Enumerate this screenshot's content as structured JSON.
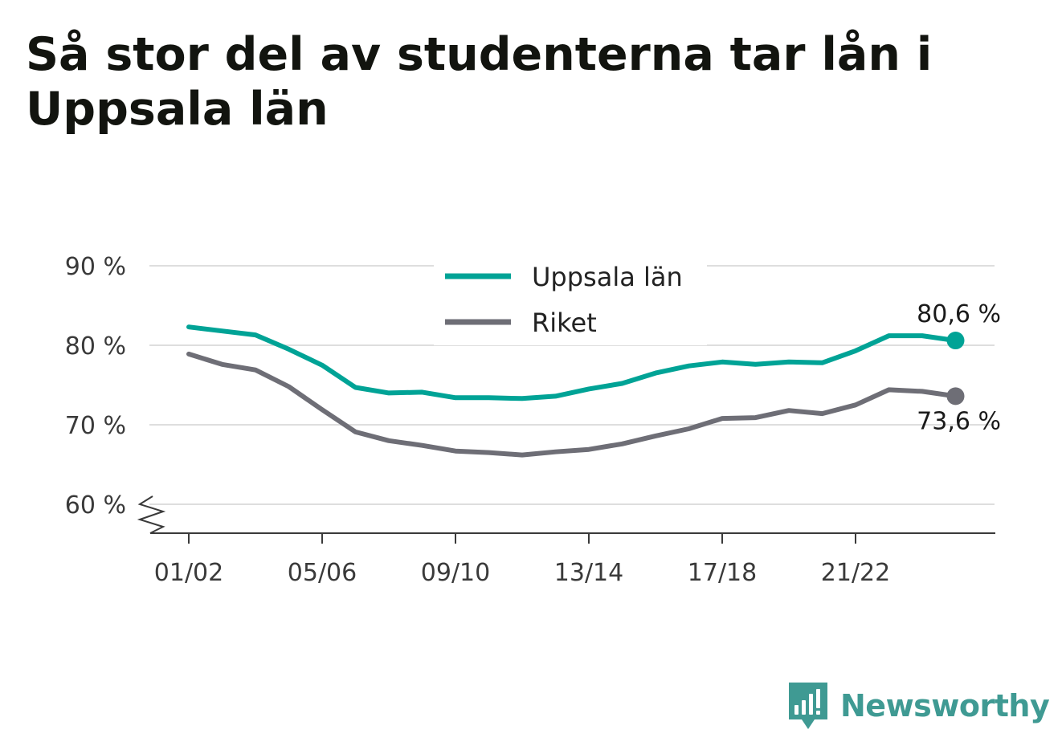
{
  "title": "Så stor del av studenterna tar lån i Uppsala län",
  "brand": {
    "name": "Newsworthy",
    "icon": "newsworthy-logo-icon",
    "color": "#3f9a93"
  },
  "chart_data": {
    "type": "line",
    "title": "Så stor del av studenterna tar lån i Uppsala län",
    "y_tick_labels": [
      "90 %",
      "80 %",
      "70 %",
      "60 %"
    ],
    "y_ticks": [
      90,
      80,
      70,
      60
    ],
    "ylim": [
      60,
      90
    ],
    "y_axis_break": true,
    "x_tick_labels": [
      "01/02",
      "05/06",
      "09/10",
      "13/14",
      "17/18",
      "21/22"
    ],
    "x_tick_index": [
      0,
      4,
      8,
      12,
      16,
      20
    ],
    "grid": true,
    "legend_position": "top-center",
    "series": [
      {
        "name": "Uppsala län",
        "color": "#00a396",
        "values": [
          82.3,
          81.8,
          81.3,
          79.5,
          77.5,
          74.7,
          74.0,
          74.1,
          73.4,
          73.4,
          73.3,
          73.6,
          74.5,
          75.2,
          76.5,
          77.4,
          77.9,
          77.6,
          77.9,
          77.8,
          79.3,
          81.2,
          81.2,
          80.6
        ],
        "end_label": "80,6 %"
      },
      {
        "name": "Riket",
        "color": "#6e6e76",
        "values": [
          78.9,
          77.6,
          76.9,
          74.8,
          71.9,
          69.1,
          68.0,
          67.4,
          66.7,
          66.5,
          66.2,
          66.6,
          66.9,
          67.6,
          68.6,
          69.5,
          70.8,
          70.9,
          71.8,
          71.4,
          72.5,
          74.4,
          74.2,
          73.6
        ],
        "end_label": "73,6 %"
      }
    ]
  }
}
